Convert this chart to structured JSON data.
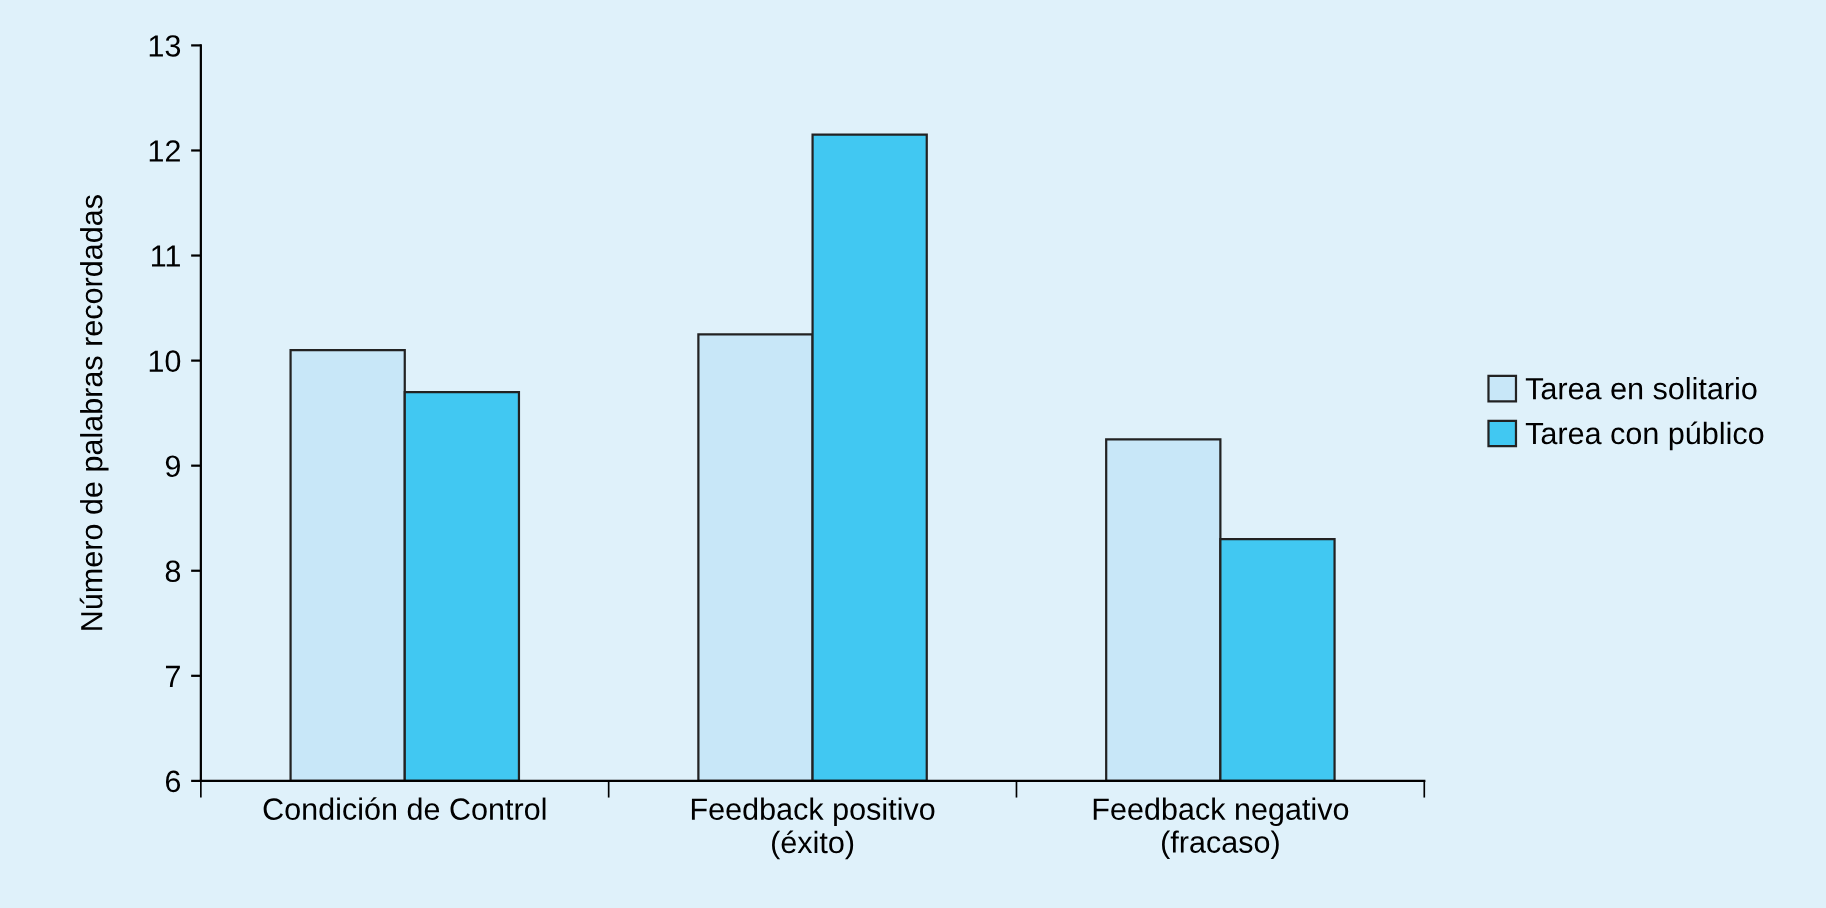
{
  "chart_data": {
    "type": "bar",
    "ylabel": "Número de palabras recordadas",
    "categories": [
      "Condición de Control",
      "Feedback positivo\n(éxito)",
      "Feedback negativo\n(fracaso)"
    ],
    "series": [
      {
        "name": "Tarea en solitario",
        "color": "#c8e7f8",
        "values": [
          10.1,
          10.25,
          9.25
        ]
      },
      {
        "name": "Tarea con público",
        "color": "#41c8f2",
        "values": [
          9.7,
          12.15,
          8.3
        ]
      }
    ],
    "ylim": [
      6,
      13
    ],
    "yticks": [
      6,
      7,
      8,
      9,
      10,
      11,
      12,
      13
    ],
    "grid": false,
    "legend": "right"
  }
}
